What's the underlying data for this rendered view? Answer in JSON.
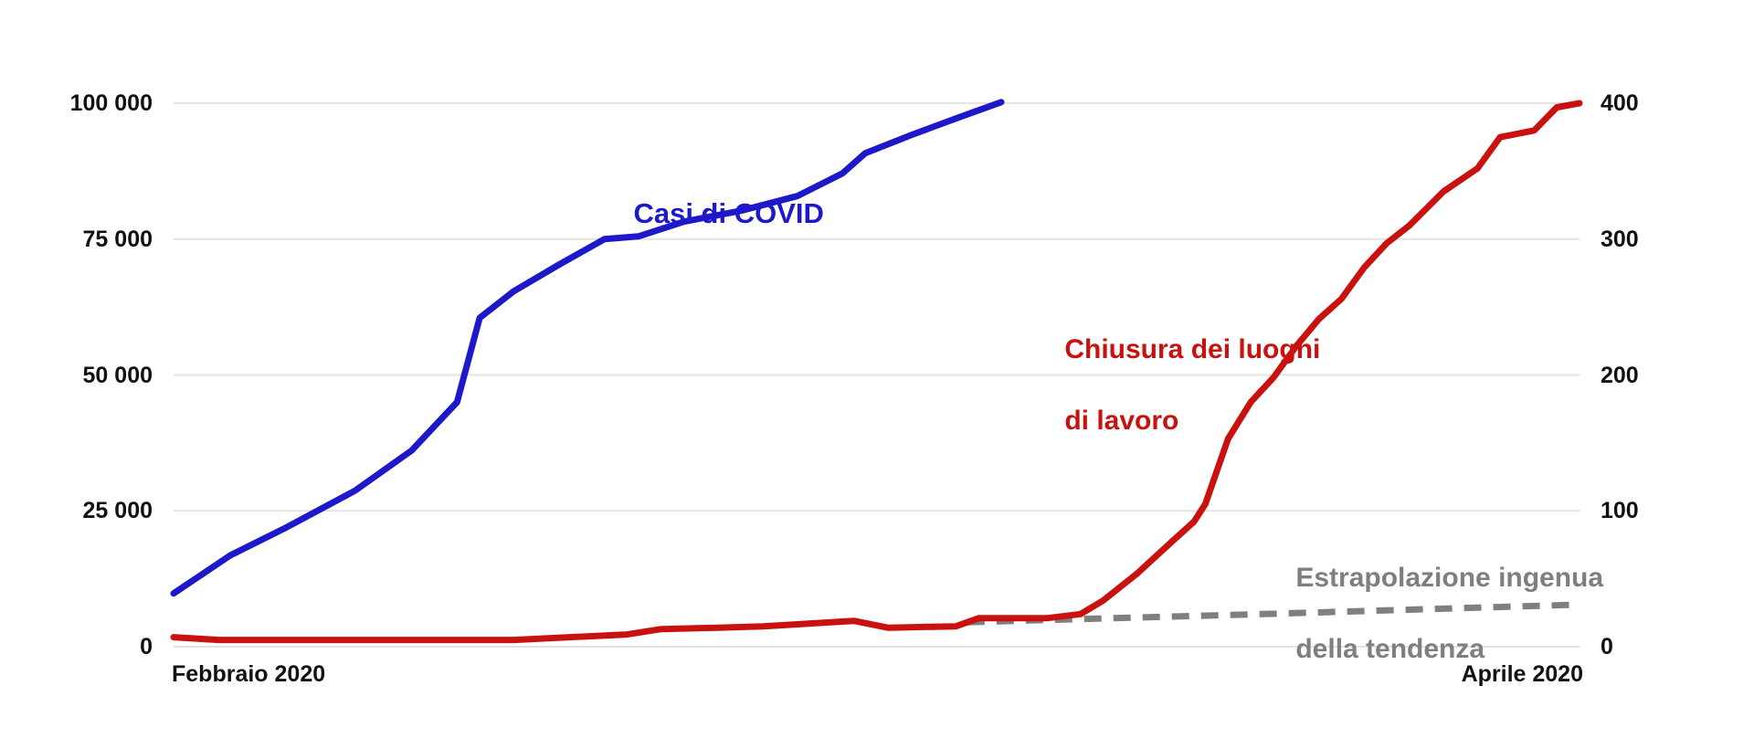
{
  "page": {
    "background": "#ffffff",
    "gridline_color": "#e3e3e3",
    "tick_text_color": "#111111"
  },
  "chart_data": {
    "type": "line",
    "title": "",
    "grid": true,
    "legend_position": "inline-annotations",
    "x_axis": {
      "start_label": "Febbraio 2020",
      "end_label": "Aprile 2020",
      "unit": "days-from-feb-1",
      "range": [
        0,
        62
      ]
    },
    "y_axis_left": {
      "max": 100000,
      "min": 0,
      "tick_values": [
        0,
        25000,
        50000,
        75000,
        100000
      ],
      "tick_labels": [
        "0",
        "25 000",
        "50 000",
        "75 000",
        "100 000"
      ]
    },
    "y_axis_right": {
      "max": 400,
      "min": 0,
      "tick_values": [
        0,
        100,
        200,
        300,
        400
      ],
      "tick_labels": [
        "0",
        "100",
        "200",
        "300",
        "400"
      ]
    },
    "series": [
      {
        "name": "Estrapolazione ingenua della tendenza",
        "axis": "right",
        "color": "#7f7f7f",
        "style": "dashed",
        "stroke_width": 7,
        "points": [
          [
            35,
            18
          ],
          [
            48,
            24
          ],
          [
            62,
            31
          ]
        ]
      },
      {
        "name": "Casi di COVID",
        "axis": "left",
        "color": "#1d18c9",
        "style": "solid",
        "stroke_width": 7,
        "points": [
          [
            0,
            9800
          ],
          [
            2.5,
            16800
          ],
          [
            5,
            22000
          ],
          [
            8,
            28700
          ],
          [
            10.5,
            36100
          ],
          [
            12.5,
            45000
          ],
          [
            13.5,
            60500
          ],
          [
            15,
            65400
          ],
          [
            17,
            70300
          ],
          [
            19,
            75000
          ],
          [
            20.5,
            75500
          ],
          [
            22.5,
            78200
          ],
          [
            25,
            80200
          ],
          [
            27.5,
            82900
          ],
          [
            29.5,
            87100
          ],
          [
            30.5,
            90800
          ],
          [
            32.5,
            94100
          ],
          [
            34.5,
            97200
          ],
          [
            36.5,
            100200
          ]
        ]
      },
      {
        "name": "Chiusura dei luoghi di lavoro",
        "axis": "right",
        "color": "#c9120f",
        "style": "solid",
        "stroke_width": 7,
        "points": [
          [
            0,
            7
          ],
          [
            2,
            5
          ],
          [
            15,
            5
          ],
          [
            20,
            9
          ],
          [
            21.5,
            13
          ],
          [
            24,
            14
          ],
          [
            26,
            15
          ],
          [
            28,
            17
          ],
          [
            30,
            19
          ],
          [
            31.5,
            14
          ],
          [
            34.5,
            15
          ],
          [
            35.5,
            21
          ],
          [
            38.5,
            21
          ],
          [
            40,
            24
          ],
          [
            41,
            34
          ],
          [
            42.5,
            54
          ],
          [
            44,
            77
          ],
          [
            45,
            92
          ],
          [
            45.5,
            105
          ],
          [
            46.5,
            153
          ],
          [
            47.5,
            180
          ],
          [
            48.5,
            198
          ],
          [
            49.5,
            221
          ],
          [
            50.5,
            241
          ],
          [
            51.5,
            256
          ],
          [
            52.5,
            279
          ],
          [
            53.5,
            297
          ],
          [
            54.5,
            310
          ],
          [
            56,
            335
          ],
          [
            57.5,
            352
          ],
          [
            58.5,
            375
          ],
          [
            60,
            380
          ],
          [
            61,
            397
          ],
          [
            62,
            400
          ]
        ]
      }
    ]
  },
  "labels": {
    "covid": {
      "text": "Casi di COVID",
      "color": "#1d18c9"
    },
    "closures": {
      "line1": "Chiusura dei luoghi",
      "line2": "di lavoro",
      "color": "#c9120f"
    },
    "extrapolation": {
      "line1": "Estrapolazione ingenua",
      "line2": "della tendenza",
      "color": "#7f7f7f"
    }
  }
}
